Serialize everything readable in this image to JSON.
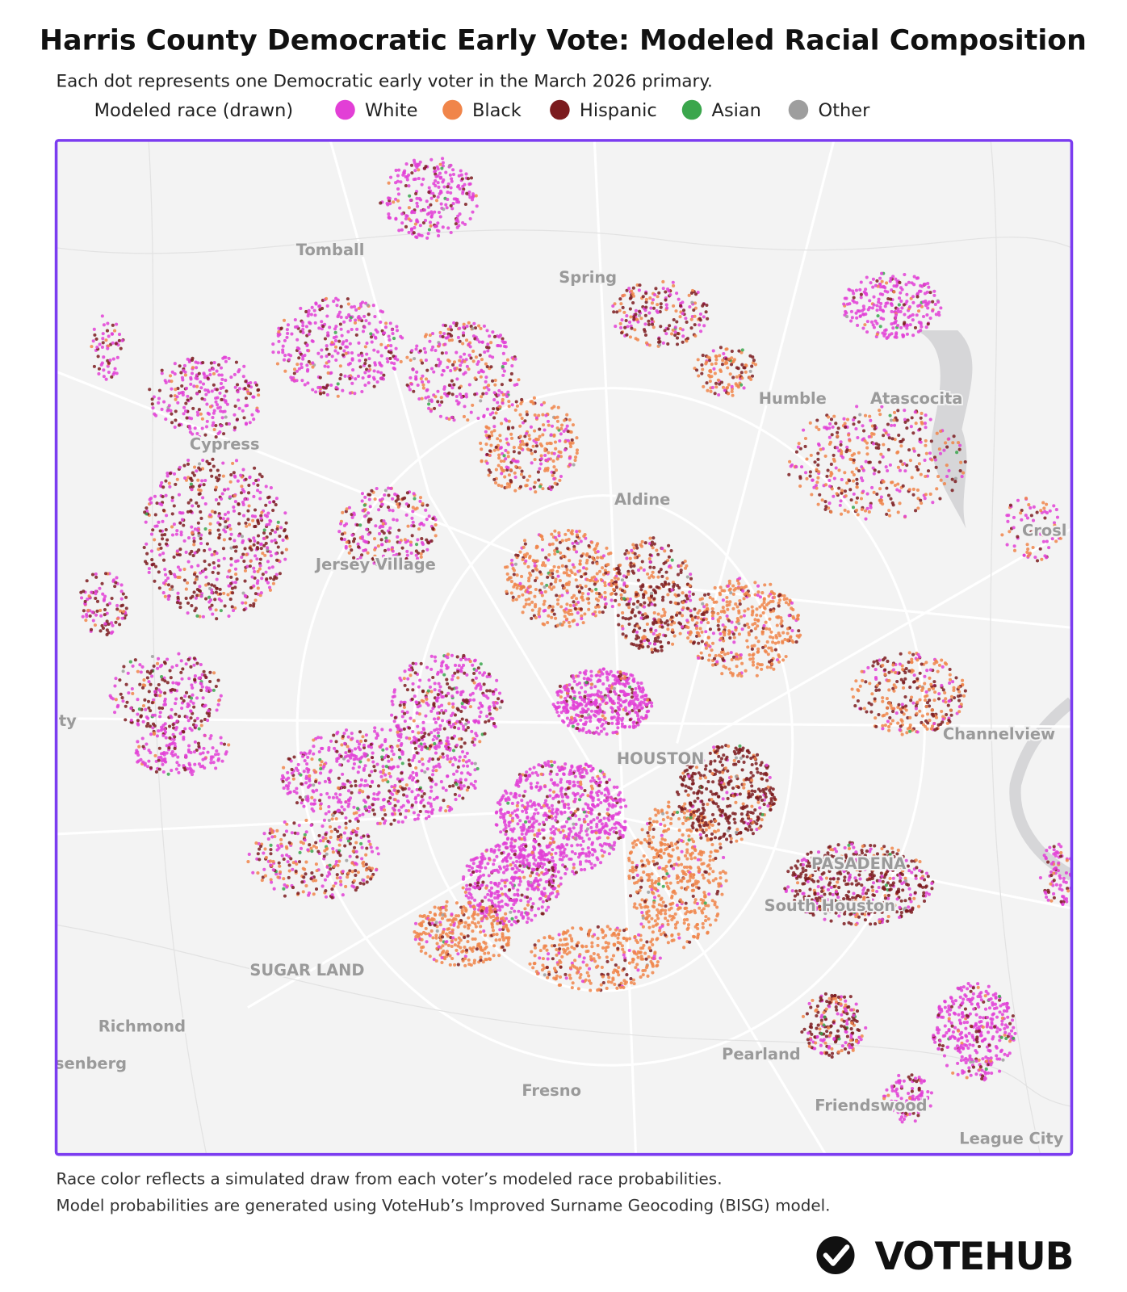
{
  "header": {
    "title": "Harris County Democratic Early Vote: Modeled Racial Composition",
    "subtitle": "Each dot represents one Democratic early voter in the March 2026 primary."
  },
  "legend": {
    "label": "Modeled race (drawn)",
    "items": [
      {
        "name": "White",
        "color": "#e23fd6"
      },
      {
        "name": "Black",
        "color": "#f0854a"
      },
      {
        "name": "Hispanic",
        "color": "#7b1b1e"
      },
      {
        "name": "Asian",
        "color": "#3aa64c"
      },
      {
        "name": "Other",
        "color": "#9e9e9e"
      }
    ]
  },
  "map": {
    "labels": [
      "Tomball",
      "Spring",
      "Humble",
      "Atascocita",
      "Cypress",
      "Aldine",
      "Jersey Village",
      "HOUSTON",
      "Channelview",
      "PASADENA",
      "South Houston",
      "SUGAR LAND",
      "Richmond",
      "senberg",
      "Pearland",
      "Fresno",
      "Friendswood",
      "League City",
      "ty",
      "Crosl"
    ]
  },
  "footer": {
    "notes": [
      "Race color reflects a simulated draw from each voter’s modeled race probabilities.",
      "Model probabilities are generated using VoteHub’s Improved Surname Geocoding (BISG) model."
    ],
    "logo": "VOTEHUB"
  }
}
